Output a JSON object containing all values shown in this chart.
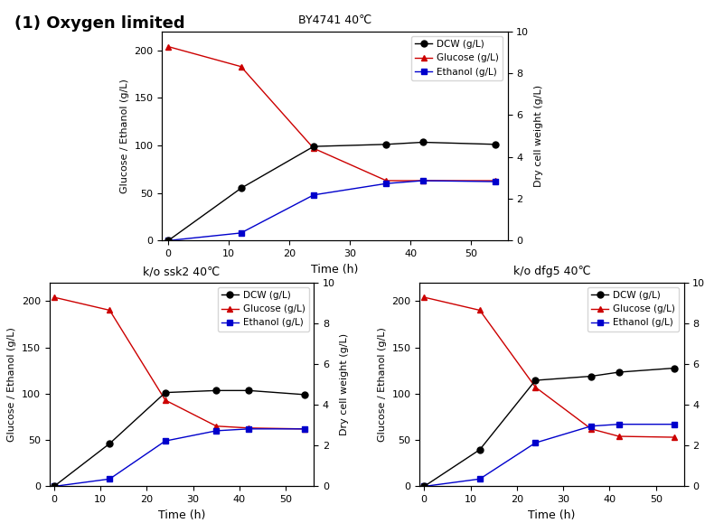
{
  "title_main": "(1) Oxygen limited",
  "plots": [
    {
      "title": "BY4741 40℃",
      "time": [
        0,
        12,
        24,
        36,
        42,
        54
      ],
      "dcw": [
        0,
        2.5,
        4.5,
        4.6,
        4.7,
        4.6
      ],
      "glucose": [
        204,
        183,
        97,
        63,
        63,
        63
      ],
      "ethanol": [
        0,
        8,
        48,
        60,
        63,
        62
      ]
    },
    {
      "title": "k/o ssk2 40℃",
      "time": [
        0,
        12,
        24,
        35,
        42,
        54
      ],
      "dcw": [
        0,
        2.1,
        4.6,
        4.7,
        4.7,
        4.5
      ],
      "glucose": [
        204,
        190,
        93,
        65,
        63,
        62
      ],
      "ethanol": [
        0,
        8,
        49,
        60,
        62,
        62
      ]
    },
    {
      "title": "k/o dfg5 40℃",
      "time": [
        0,
        12,
        24,
        36,
        42,
        54
      ],
      "dcw": [
        0,
        1.8,
        5.2,
        5.4,
        5.6,
        5.8
      ],
      "glucose": [
        204,
        190,
        107,
        62,
        54,
        53
      ],
      "ethanol": [
        0,
        8,
        47,
        65,
        67,
        67
      ]
    }
  ],
  "ylabel_left": "Glucose / Ethanol (g/L)",
  "ylabel_right": "Dry cell weight (g/L)",
  "xlabel": "Time (h)",
  "left_ylim": [
    0,
    220
  ],
  "left_yticks": [
    0,
    50,
    100,
    150,
    200
  ],
  "right_ylim": [
    0,
    10
  ],
  "right_yticks": [
    0,
    2,
    4,
    6,
    8,
    10
  ],
  "xlim": [
    -1,
    56
  ],
  "xticks": [
    0,
    10,
    20,
    30,
    40,
    50
  ],
  "dcw_color": "#000000",
  "glucose_color": "#cc0000",
  "ethanol_color": "#0000cc",
  "dcw_marker": "o",
  "glucose_marker": "^",
  "ethanol_marker": "s",
  "legend_labels": [
    "DCW (g/L)",
    "Glucose (g/L)",
    "Ethanol (g/L)"
  ],
  "linewidth": 1.0,
  "markersize": 5,
  "background_color": "#ffffff"
}
